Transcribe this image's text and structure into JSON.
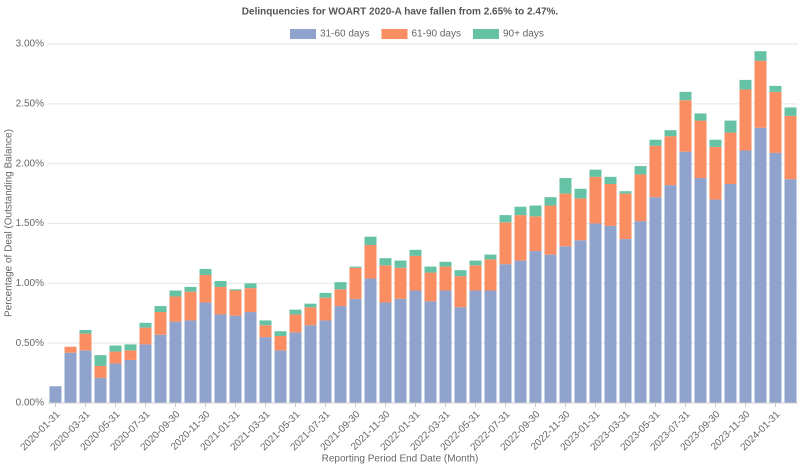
{
  "chart_data": {
    "type": "stacked_bar",
    "title": "Delinquencies for WOART 2020-A have fallen from 2.65% to 2.47%.",
    "x_label": "Reporting Period End Date (Month)",
    "y_label": "Percentage of Deal (Outstanding Balance)",
    "categories": [
      "2020-01-31",
      null,
      "2020-03-31",
      null,
      "2020-05-31",
      null,
      "2020-07-31",
      null,
      "2020-09-30",
      null,
      "2020-11-30",
      null,
      "2021-01-31",
      null,
      "2021-03-31",
      null,
      "2021-05-31",
      null,
      "2021-07-31",
      null,
      "2021-09-30",
      null,
      "2021-11-30",
      null,
      "2022-01-31",
      null,
      "2022-03-31",
      null,
      "2022-05-31",
      null,
      "2022-07-31",
      null,
      "2022-09-30",
      null,
      "2022-11-30",
      null,
      "2023-01-31",
      null,
      "2023-03-31",
      null,
      "2023-05-31",
      null,
      "2023-07-31",
      null,
      "2023-09-30",
      null,
      "2023-11-30",
      null,
      "2024-01-31",
      null
    ],
    "series": [
      {
        "name": "31-60 days",
        "color": "#8fa3cc",
        "values": [
          0.14,
          0.42,
          0.44,
          0.21,
          0.33,
          0.36,
          0.49,
          0.57,
          0.68,
          0.69,
          0.84,
          0.74,
          0.73,
          0.76,
          0.55,
          0.44,
          0.59,
          0.65,
          0.69,
          0.81,
          0.87,
          1.04,
          0.84,
          0.87,
          0.94,
          0.85,
          0.94,
          0.8,
          0.94,
          0.94,
          1.16,
          1.19,
          1.27,
          1.24,
          1.31,
          1.36,
          1.5,
          1.48,
          1.37,
          1.52,
          1.72,
          1.82,
          2.1,
          1.88,
          1.7,
          1.83,
          2.11,
          2.3,
          2.09,
          1.87
        ]
      },
      {
        "name": "61-90 days",
        "color": "#fb8d62",
        "values": [
          0,
          0.05,
          0.14,
          0.1,
          0.1,
          0.08,
          0.14,
          0.19,
          0.21,
          0.24,
          0.23,
          0.23,
          0.21,
          0.2,
          0.1,
          0.12,
          0.15,
          0.15,
          0.19,
          0.14,
          0.26,
          0.28,
          0.31,
          0.26,
          0.29,
          0.24,
          0.2,
          0.26,
          0.21,
          0.26,
          0.35,
          0.38,
          0.29,
          0.41,
          0.44,
          0.35,
          0.39,
          0.35,
          0.38,
          0.39,
          0.43,
          0.41,
          0.43,
          0.48,
          0.44,
          0.43,
          0.51,
          0.56,
          0.51,
          0.53
        ]
      },
      {
        "name": "90+ days",
        "color": "#66c2a5",
        "values": [
          0,
          0,
          0.03,
          0.09,
          0.05,
          0.05,
          0.04,
          0.05,
          0.05,
          0.04,
          0.05,
          0.05,
          0.01,
          0.04,
          0.04,
          0.04,
          0.04,
          0.03,
          0.04,
          0.06,
          0.01,
          0.07,
          0.06,
          0.06,
          0.05,
          0.05,
          0.04,
          0.05,
          0.04,
          0.04,
          0.06,
          0.07,
          0.09,
          0.07,
          0.13,
          0.08,
          0.06,
          0.06,
          0.02,
          0.07,
          0.05,
          0.05,
          0.07,
          0.06,
          0.06,
          0.1,
          0.08,
          0.08,
          0.05,
          0.07
        ]
      }
    ],
    "ylim": [
      0,
      3
    ],
    "yticks": [
      {
        "value": 0,
        "label": "0.00%"
      },
      {
        "value": 0.5,
        "label": "0.50%"
      },
      {
        "value": 1,
        "label": "1.00%"
      },
      {
        "value": 1.5,
        "label": "1.50%"
      },
      {
        "value": 2,
        "label": "2.00%"
      },
      {
        "value": 2.5,
        "label": "2.50%"
      },
      {
        "value": 3,
        "label": "3.00%"
      }
    ],
    "grid": true
  }
}
